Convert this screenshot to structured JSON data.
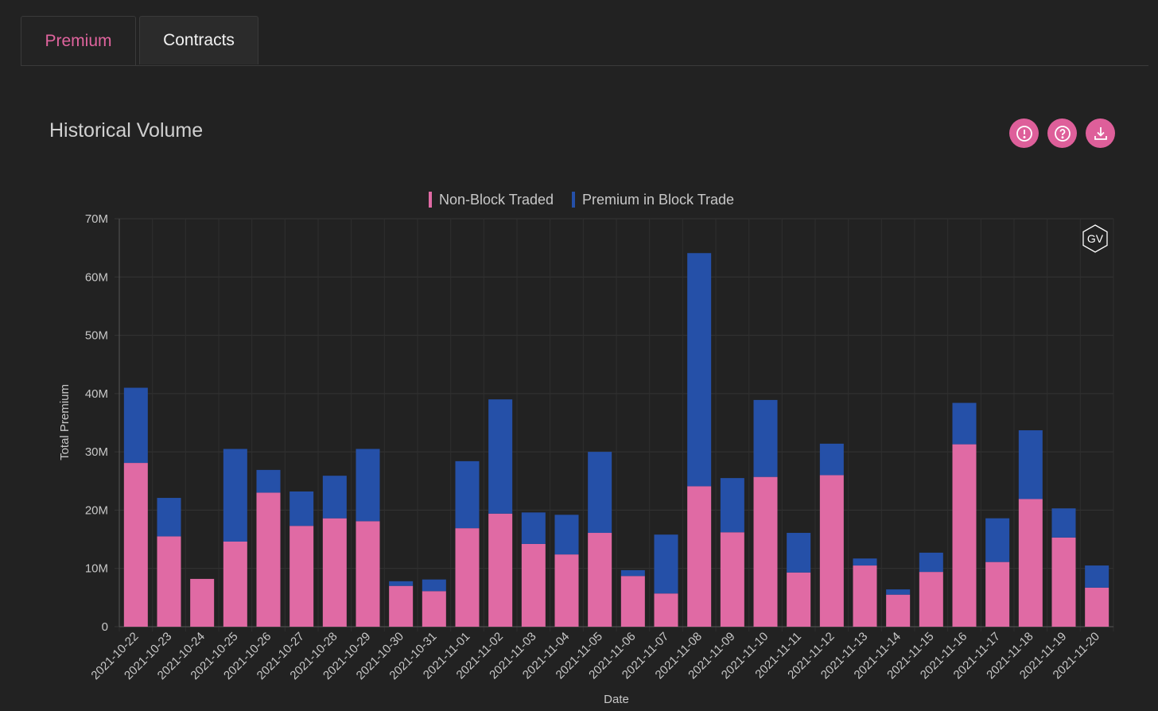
{
  "tabs": {
    "premium": "Premium",
    "contracts": "Contracts",
    "active": "premium"
  },
  "header": {
    "title": "Historical Volume"
  },
  "toolbar": {
    "alert_icon": "alert-circle-icon",
    "help_icon": "help-circle-icon",
    "download_icon": "download-icon"
  },
  "watermark": "GV",
  "colors": {
    "accent": "#de5f9a",
    "non_block": "#e06aa4",
    "block": "#2550a8",
    "background": "#222222"
  },
  "chart_data": {
    "type": "bar",
    "stacked": true,
    "xlabel": "Date",
    "ylabel": "Total Premium",
    "ylim": [
      0,
      70000000
    ],
    "yticks": [
      "0",
      "10M",
      "20M",
      "30M",
      "40M",
      "50M",
      "60M",
      "70M"
    ],
    "grid": true,
    "legend_position": "top-center",
    "categories": [
      "2021-10-22",
      "2021-10-23",
      "2021-10-24",
      "2021-10-25",
      "2021-10-26",
      "2021-10-27",
      "2021-10-28",
      "2021-10-29",
      "2021-10-30",
      "2021-10-31",
      "2021-11-01",
      "2021-11-02",
      "2021-11-03",
      "2021-11-04",
      "2021-11-05",
      "2021-11-06",
      "2021-11-07",
      "2021-11-08",
      "2021-11-09",
      "2021-11-10",
      "2021-11-11",
      "2021-11-12",
      "2021-11-13",
      "2021-11-14",
      "2021-11-15",
      "2021-11-16",
      "2021-11-17",
      "2021-11-18",
      "2021-11-19",
      "2021-11-20"
    ],
    "series": [
      {
        "name": "Non-Block Traded",
        "color": "#e06aa4",
        "values": [
          28.1,
          15.5,
          8.2,
          14.6,
          23.0,
          17.3,
          18.6,
          18.1,
          7.0,
          6.1,
          16.9,
          19.4,
          14.2,
          12.4,
          16.1,
          8.7,
          5.7,
          24.1,
          16.2,
          25.7,
          9.3,
          26.0,
          10.5,
          5.5,
          9.4,
          31.3,
          11.1,
          21.9,
          15.3,
          6.7
        ],
        "unit": "M"
      },
      {
        "name": "Premium in Block Trade",
        "color": "#2550a8",
        "values": [
          12.9,
          6.6,
          0.0,
          15.9,
          3.9,
          5.9,
          7.3,
          12.4,
          0.8,
          2.0,
          11.5,
          19.6,
          5.4,
          6.8,
          13.9,
          1.0,
          10.1,
          40.0,
          9.3,
          13.2,
          6.8,
          5.4,
          1.2,
          0.9,
          3.3,
          7.1,
          7.5,
          11.8,
          5.0,
          3.8
        ],
        "unit": "M"
      }
    ]
  }
}
